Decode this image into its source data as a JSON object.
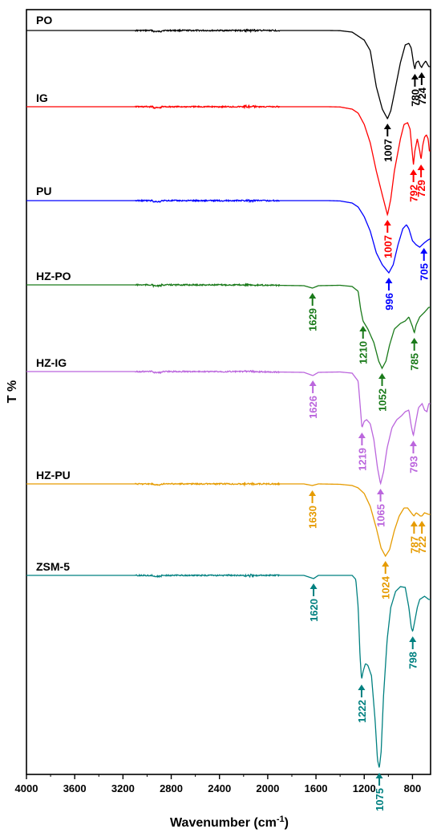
{
  "chart_data": {
    "type": "line",
    "title": "",
    "xlabel": "Wavenumber (cm",
    "xlabel_superscript": "-1",
    "xlabel_close": ")",
    "ylabel": "T %",
    "xlim": [
      4000,
      650
    ],
    "x_reversed": true,
    "y_tick_labels": false,
    "grid": false,
    "x_ticks": [
      4000,
      3600,
      3200,
      2800,
      2400,
      2000,
      1600,
      1200,
      800
    ],
    "x_tick_labels": [
      "4000",
      "3600",
      "3200",
      "2800",
      "2400",
      "2000",
      "1600",
      "1200",
      "800"
    ],
    "series": [
      {
        "name": "PO",
        "color": "#000000",
        "points": [
          [
            4000,
            0
          ],
          [
            3000,
            0
          ],
          [
            2200,
            0
          ],
          [
            1500,
            0
          ],
          [
            1400,
            0.2
          ],
          [
            1300,
            2
          ],
          [
            1200,
            12
          ],
          [
            1150,
            25
          ],
          [
            1100,
            70
          ],
          [
            1050,
            98
          ],
          [
            1007,
            110
          ],
          [
            980,
            100
          ],
          [
            950,
            78
          ],
          [
            900,
            40
          ],
          [
            860,
            18
          ],
          [
            830,
            16
          ],
          [
            810,
            22
          ],
          [
            790,
            42
          ],
          [
            780,
            48
          ],
          [
            770,
            40
          ],
          [
            750,
            38
          ],
          [
            735,
            44
          ],
          [
            724,
            46
          ],
          [
            710,
            42
          ],
          [
            690,
            38
          ],
          [
            665,
            45
          ]
        ],
        "annotations": [
          {
            "label": "1007",
            "x": 1007
          },
          {
            "label": "780",
            "x": 780
          },
          {
            "label": "724",
            "x": 724
          }
        ]
      },
      {
        "name": "IG",
        "color": "#ff0000",
        "points": [
          [
            4000,
            0
          ],
          [
            3000,
            0
          ],
          [
            2200,
            0
          ],
          [
            1500,
            0
          ],
          [
            1400,
            0.3
          ],
          [
            1300,
            3
          ],
          [
            1250,
            8
          ],
          [
            1200,
            22
          ],
          [
            1150,
            45
          ],
          [
            1100,
            80
          ],
          [
            1050,
            110
          ],
          [
            1007,
            135
          ],
          [
            980,
            115
          ],
          [
            950,
            80
          ],
          [
            900,
            40
          ],
          [
            870,
            22
          ],
          [
            840,
            20
          ],
          [
            820,
            28
          ],
          [
            800,
            60
          ],
          [
            792,
            72
          ],
          [
            780,
            55
          ],
          [
            760,
            40
          ],
          [
            740,
            55
          ],
          [
            729,
            66
          ],
          [
            715,
            48
          ],
          [
            700,
            38
          ],
          [
            685,
            35
          ],
          [
            670,
            40
          ],
          [
            660,
            55
          ]
        ],
        "annotations": [
          {
            "label": "1007",
            "x": 1007
          },
          {
            "label": "792",
            "x": 792
          },
          {
            "label": "729",
            "x": 729
          }
        ]
      },
      {
        "name": "PU",
        "color": "#0000ff",
        "points": [
          [
            4000,
            0
          ],
          [
            3000,
            0
          ],
          [
            2200,
            0
          ],
          [
            1500,
            0
          ],
          [
            1400,
            0.4
          ],
          [
            1300,
            3
          ],
          [
            1250,
            8
          ],
          [
            1200,
            20
          ],
          [
            1150,
            38
          ],
          [
            1100,
            65
          ],
          [
            1050,
            80
          ],
          [
            996,
            90
          ],
          [
            960,
            80
          ],
          [
            920,
            55
          ],
          [
            880,
            35
          ],
          [
            850,
            30
          ],
          [
            830,
            35
          ],
          [
            800,
            50
          ],
          [
            770,
            55
          ],
          [
            740,
            58
          ],
          [
            705,
            53
          ],
          [
            680,
            50
          ],
          [
            660,
            48
          ]
        ],
        "annotations": [
          {
            "label": "996",
            "x": 996
          },
          {
            "label": "705",
            "x": 705
          }
        ]
      },
      {
        "name": "HZ-PO",
        "color": "#1a7a1a",
        "points": [
          [
            4000,
            0
          ],
          [
            3000,
            0
          ],
          [
            2200,
            0
          ],
          [
            1700,
            1
          ],
          [
            1629,
            4
          ],
          [
            1580,
            1
          ],
          [
            1400,
            0.5
          ],
          [
            1300,
            2
          ],
          [
            1250,
            8
          ],
          [
            1230,
            30
          ],
          [
            1210,
            45
          ],
          [
            1190,
            50
          ],
          [
            1170,
            55
          ],
          [
            1120,
            72
          ],
          [
            1080,
            95
          ],
          [
            1052,
            104
          ],
          [
            1020,
            95
          ],
          [
            990,
            75
          ],
          [
            950,
            55
          ],
          [
            900,
            48
          ],
          [
            860,
            45
          ],
          [
            830,
            40
          ],
          [
            800,
            52
          ],
          [
            785,
            60
          ],
          [
            770,
            50
          ],
          [
            740,
            40
          ],
          [
            700,
            34
          ],
          [
            665,
            28
          ]
        ],
        "annotations": [
          {
            "label": "1629",
            "x": 1629
          },
          {
            "label": "1210",
            "x": 1210
          },
          {
            "label": "1052",
            "x": 1052
          },
          {
            "label": "785",
            "x": 785
          }
        ]
      },
      {
        "name": "HZ-IG",
        "color": "#bb66dd",
        "points": [
          [
            4000,
            0
          ],
          [
            3000,
            0
          ],
          [
            2200,
            0
          ],
          [
            1700,
            1
          ],
          [
            1626,
            5
          ],
          [
            1580,
            1
          ],
          [
            1400,
            0.5
          ],
          [
            1300,
            2
          ],
          [
            1250,
            12
          ],
          [
            1235,
            40
          ],
          [
            1219,
            70
          ],
          [
            1200,
            62
          ],
          [
            1180,
            60
          ],
          [
            1150,
            65
          ],
          [
            1120,
            85
          ],
          [
            1090,
            120
          ],
          [
            1065,
            140
          ],
          [
            1040,
            125
          ],
          [
            1010,
            95
          ],
          [
            970,
            70
          ],
          [
            930,
            60
          ],
          [
            890,
            55
          ],
          [
            860,
            50
          ],
          [
            830,
            48
          ],
          [
            810,
            68
          ],
          [
            793,
            80
          ],
          [
            775,
            65
          ],
          [
            750,
            45
          ],
          [
            720,
            40
          ],
          [
            700,
            48
          ],
          [
            680,
            50
          ],
          [
            665,
            40
          ]
        ],
        "annotations": [
          {
            "label": "1626",
            "x": 1626
          },
          {
            "label": "1219",
            "x": 1219
          },
          {
            "label": "1065",
            "x": 1065
          },
          {
            "label": "793",
            "x": 793
          }
        ]
      },
      {
        "name": "HZ-PU",
        "color": "#e69b00",
        "points": [
          [
            4000,
            0
          ],
          [
            3000,
            0
          ],
          [
            2200,
            0
          ],
          [
            1700,
            0
          ],
          [
            1630,
            2
          ],
          [
            1580,
            0
          ],
          [
            1400,
            0.5
          ],
          [
            1300,
            2
          ],
          [
            1250,
            5
          ],
          [
            1200,
            12
          ],
          [
            1150,
            28
          ],
          [
            1100,
            55
          ],
          [
            1060,
            80
          ],
          [
            1024,
            90
          ],
          [
            990,
            82
          ],
          [
            950,
            58
          ],
          [
            910,
            40
          ],
          [
            870,
            30
          ],
          [
            840,
            30
          ],
          [
            820,
            34
          ],
          [
            800,
            38
          ],
          [
            787,
            40
          ],
          [
            770,
            36
          ],
          [
            750,
            38
          ],
          [
            735,
            40
          ],
          [
            722,
            40
          ],
          [
            700,
            36
          ],
          [
            665,
            38
          ]
        ],
        "annotations": [
          {
            "label": "1630",
            "x": 1630
          },
          {
            "label": "1024",
            "x": 1024
          },
          {
            "label": "787",
            "x": 787
          },
          {
            "label": "722",
            "x": 722
          }
        ]
      },
      {
        "name": "ZSM-5",
        "color": "#008080",
        "points": [
          [
            4000,
            0
          ],
          [
            3000,
            0
          ],
          [
            2200,
            0
          ],
          [
            1700,
            0
          ],
          [
            1620,
            4
          ],
          [
            1580,
            0
          ],
          [
            1400,
            0
          ],
          [
            1300,
            0
          ],
          [
            1270,
            5
          ],
          [
            1250,
            40
          ],
          [
            1235,
            100
          ],
          [
            1222,
            130
          ],
          [
            1210,
            120
          ],
          [
            1190,
            110
          ],
          [
            1170,
            112
          ],
          [
            1140,
            125
          ],
          [
            1110,
            180
          ],
          [
            1090,
            230
          ],
          [
            1075,
            240
          ],
          [
            1060,
            220
          ],
          [
            1040,
            150
          ],
          [
            1010,
            80
          ],
          [
            980,
            40
          ],
          [
            940,
            20
          ],
          [
            900,
            14
          ],
          [
            860,
            15
          ],
          [
            830,
            40
          ],
          [
            810,
            65
          ],
          [
            798,
            70
          ],
          [
            785,
            60
          ],
          [
            760,
            40
          ],
          [
            740,
            30
          ],
          [
            720,
            28
          ],
          [
            700,
            26
          ],
          [
            665,
            30
          ]
        ],
        "annotations": [
          {
            "label": "1620",
            "x": 1620
          },
          {
            "label": "1222",
            "x": 1222
          },
          {
            "label": "1075",
            "x": 1075
          },
          {
            "label": "798",
            "x": 798
          }
        ]
      }
    ]
  }
}
